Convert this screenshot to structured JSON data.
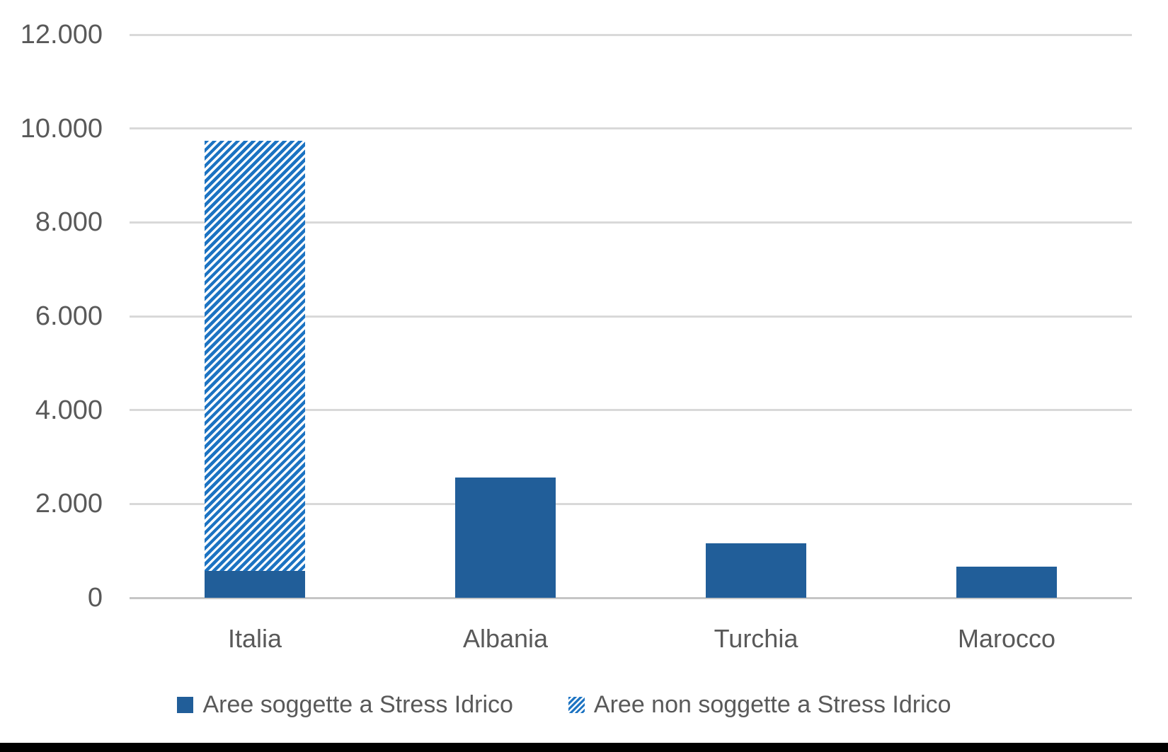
{
  "chart_data": {
    "type": "bar",
    "stacked": true,
    "title": "",
    "categories": [
      "Italia",
      "Albania",
      "Turchia",
      "Marocco"
    ],
    "series": [
      {
        "name": "Aree soggette a Stress Idrico",
        "style": "solid",
        "color": "#215E99",
        "values": [
          580,
          2560,
          1160,
          670
        ]
      },
      {
        "name": "Aree non soggette a Stress Idrico",
        "style": "hatched",
        "color": "#1C73C2",
        "values": [
          9160,
          0,
          0,
          0
        ]
      }
    ],
    "ylim": [
      0,
      12000
    ],
    "y_ticks": [
      "0",
      "2.000",
      "4.000",
      "6.000",
      "8.000",
      "10.000",
      "12.000"
    ],
    "grid": true,
    "legend_position": "bottom"
  },
  "colors": {
    "bar_solid": "#215E99",
    "bar_hatch": "#1C73C2",
    "text": "#595959",
    "gridline": "#D9D9D9",
    "axis_line": "#C6C6C6",
    "background": "#FFFFFF",
    "bottom_bar": "#000000"
  }
}
